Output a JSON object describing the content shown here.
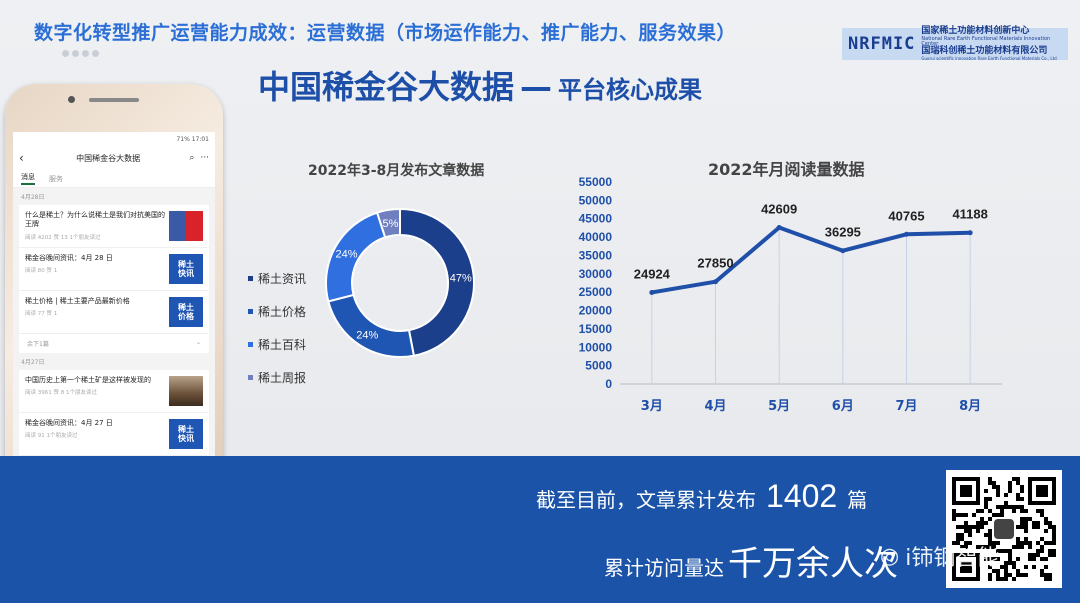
{
  "header": {
    "top_title": "数字化转型推广运营能力成效：运营数据（市场运作能力、推广能力、服务效果）",
    "logo_mark": "NRFMIC",
    "logo_line1": "国家稀土功能材料创新中心",
    "logo_line2": "National Rare Earth Functional Materials Innovation Center",
    "logo_line3": "国瑞科创稀土功能材料有限公司",
    "logo_line4": "Guorui scientific innovation Rare Earth Functional Materials Co., Ltd",
    "main_title": "中国稀金谷大数据",
    "main_dash": "—",
    "main_subtitle": "平台核心成果"
  },
  "phone": {
    "status": "71% 17:01",
    "nav_title": "中国稀金谷大数据",
    "back": "‹",
    "search_icon": "⌕",
    "more_icon": "···",
    "tab_active": "消息",
    "tab_other": "服务",
    "groups": [
      {
        "date": "4月28日",
        "items": [
          {
            "title": "什么是稀土？为什么说稀土是我们对抗美国的王牌",
            "meta": "阅读 4202  赞 13  1个朋友读过",
            "thumb": "flag"
          },
          {
            "title": "稀金谷晚间资讯：4月 28 日",
            "meta": "阅读 80  赞 1",
            "thumb": "kx",
            "thumb_l1": "稀土",
            "thumb_l2": "快讯"
          },
          {
            "title": "稀土价格 | 稀土主要产品最新价格",
            "meta": "阅读 77  赞 1",
            "thumb": "kx",
            "thumb_l1": "稀土",
            "thumb_l2": "价格"
          }
        ],
        "more": "余下1篇"
      },
      {
        "date": "4月27日",
        "items": [
          {
            "title": "中国历史上第一个稀土矿是这样被发现的",
            "meta": "阅读 3961  赞 8  1个朋友读过",
            "thumb": "rock"
          },
          {
            "title": "稀金谷晚间资讯：4月 27 日",
            "meta": "阅读 91  1个朋友读过",
            "thumb": "kx",
            "thumb_l1": "稀土",
            "thumb_l2": "快讯"
          }
        ]
      }
    ]
  },
  "donut": {
    "title": "2022年3-8月发布文章数据",
    "legend": [
      "稀土资讯",
      "稀土价格",
      "稀土百科",
      "稀土周报"
    ]
  },
  "line": {
    "title": "2022年月阅读量数据"
  },
  "chart_data": [
    {
      "type": "pie",
      "title": "2022年3-8月发布文章数据",
      "categories": [
        "稀土资讯",
        "稀土价格",
        "稀土百科",
        "稀土周报"
      ],
      "values": [
        47,
        24,
        24,
        5
      ],
      "labels": [
        "47%",
        "24%",
        "24%",
        "5%"
      ],
      "colors": [
        "#1c3f8c",
        "#1f55b3",
        "#2f6fe0",
        "#6f7fbf"
      ],
      "legend": "left"
    },
    {
      "type": "line",
      "title": "2022年月阅读量数据",
      "categories": [
        "3月",
        "4月",
        "5月",
        "6月",
        "7月",
        "8月"
      ],
      "values": [
        24924,
        27850,
        42609,
        36295,
        40765,
        41188
      ],
      "yticks": [
        "55000",
        "50000",
        "45000",
        "40000",
        "35000",
        "30000",
        "25000",
        "20000",
        "15000",
        "10000",
        "5000",
        "0"
      ],
      "ylim": [
        0,
        55000
      ],
      "color": "#1f4fa8",
      "grid": false
    }
  ],
  "band": {
    "line1_prefix": "截至目前，文章累计发布",
    "line1_num": "1402",
    "line1_suffix": "篇",
    "line2_prefix": "累计访问量达",
    "line2_big": "千万余人次",
    "watermark": "i铈钢智能",
    "wechat_icon": "wechat-icon"
  }
}
